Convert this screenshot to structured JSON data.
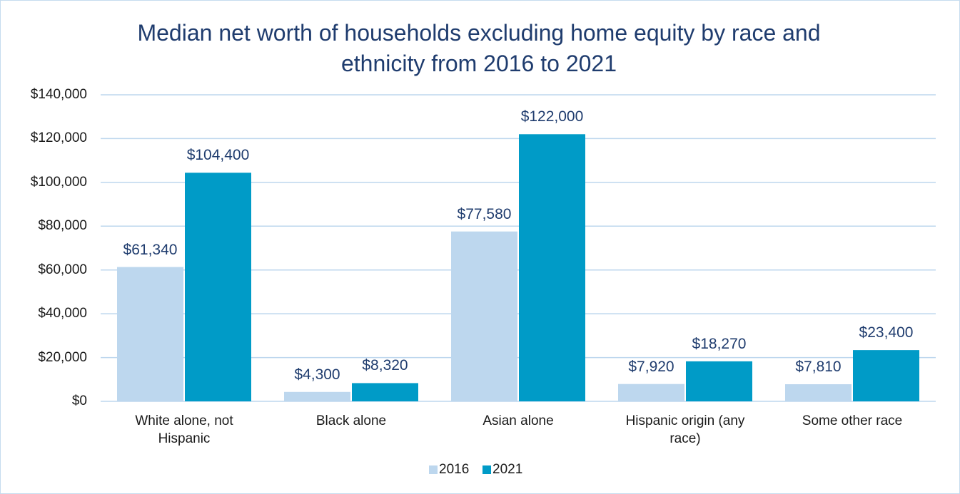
{
  "chart_data": {
    "type": "bar",
    "title": "Median net worth of households excluding home equity by race and ethnicity from 2016 to 2021",
    "categories": [
      "White alone, not Hispanic",
      "Black alone",
      "Asian alone",
      "Hispanic origin (any race)",
      "Some other race"
    ],
    "series": [
      {
        "name": "2016",
        "color": "#bdd7ee",
        "values": [
          61340,
          4300,
          77580,
          7920,
          7810
        ],
        "value_labels": [
          "$61,340",
          "$4,300",
          "$77,580",
          "$7,920",
          "$7,810"
        ]
      },
      {
        "name": "2021",
        "color": "#009bc7",
        "values": [
          104400,
          8320,
          122000,
          18270,
          23400
        ],
        "value_labels": [
          "$104,400",
          "$8,320",
          "$122,000",
          "$18,270",
          "$23,400"
        ]
      }
    ],
    "ylim": [
      0,
      140000
    ],
    "yticks": [
      {
        "value": 0,
        "label": "$0"
      },
      {
        "value": 20000,
        "label": "$20,000"
      },
      {
        "value": 40000,
        "label": "$40,000"
      },
      {
        "value": 60000,
        "label": "$60,000"
      },
      {
        "value": 80000,
        "label": "$80,000"
      },
      {
        "value": 100000,
        "label": "$100,000"
      },
      {
        "value": 120000,
        "label": "$120,000"
      },
      {
        "value": 140000,
        "label": "$140,000"
      }
    ],
    "grid": true,
    "legend": "bottom"
  }
}
